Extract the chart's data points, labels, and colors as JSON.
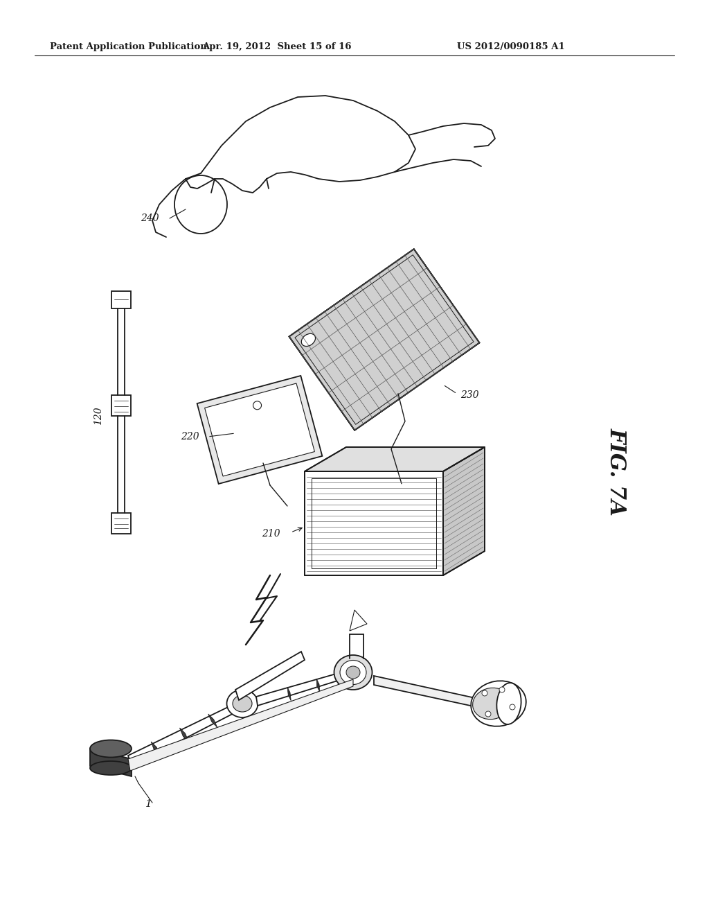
{
  "header_left": "Patent Application Publication",
  "header_center": "Apr. 19, 2012  Sheet 15 of 16",
  "header_right": "US 2012/0090185 A1",
  "fig_label": "FIG. 7A",
  "background_color": "#ffffff",
  "line_color": "#1a1a1a",
  "header_fontsize": 9.5,
  "fig_label_fontsize": 22,
  "label_fontsize": 10
}
